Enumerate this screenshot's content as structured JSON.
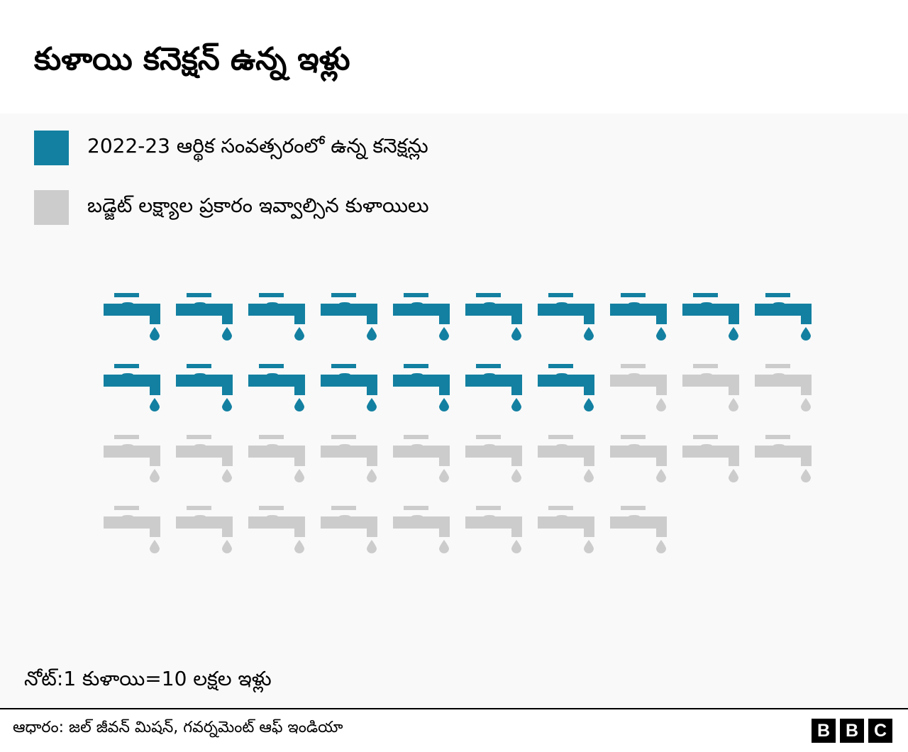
{
  "title": "కుళాయి కనెక్షన్ ఉన్న ఇళ్లు",
  "colors": {
    "connected": "#1380a1",
    "target": "#cccccc",
    "background": "#f9f9f9"
  },
  "legend": [
    {
      "label": "2022-23 ఆర్థిక సంవత్సరంలో ఉన్న కనెక్షన్లు",
      "color": "#1380a1"
    },
    {
      "label": "బడ్జెట్ లక్ష్యాల ప్రకారం ఇవ్వాల్సిన కుళాయిలు",
      "color": "#cccccc"
    }
  ],
  "chart_data": {
    "type": "pictogram",
    "icon": "water-tap-icon",
    "unit": "1 tap = 10 lakh households",
    "icons_per_row": 10,
    "series": [
      {
        "name": "2022-23 ఆర్థిక సంవత్సరంలో ఉన్న కనెక్షన్లు",
        "icons": 17,
        "color": "#1380a1"
      },
      {
        "name": "బడ్జెట్ లక్ష్యాల ప్రకారం ఇవ్వాల్సిన కుళాయిలు",
        "icons": 38,
        "color": "#cccccc"
      }
    ]
  },
  "note": "నోట్:1 కుళాయి=10 లక్షల ఇళ్లు",
  "source": "ఆధారం: జల్ జీవన్ మిషన్, గవర్నమెంట్ ఆఫ్ ఇండియా",
  "logo": [
    "B",
    "B",
    "C"
  ]
}
